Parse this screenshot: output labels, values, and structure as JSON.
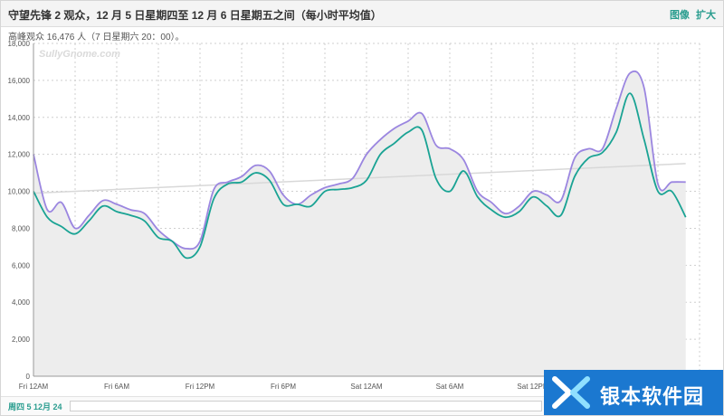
{
  "header": {
    "title": "守望先锋 2 观众，12 月 5 日星期四至 12 月 6 日星期五之间（每小时平均值）",
    "link_image": "图像",
    "link_expand": "扩大"
  },
  "subheader": {
    "peak_text": "高峰观众 16,476 人（7 日星期六 20：00）。"
  },
  "watermark": {
    "sully": "SullyGnome.com",
    "site_text": "银本软件园"
  },
  "footer": {
    "range_label": "周四 5 12月 24"
  },
  "colors": {
    "series_purple": "#9b86e0",
    "series_teal": "#1aa394",
    "trend": "#d8d8d8",
    "area_fill": "#ededed",
    "grid": "#cfcfcf",
    "accent": "#2a9d8f",
    "watermark_blue": "#1b78d0"
  },
  "chart_data": {
    "type": "line",
    "ylim": [
      0,
      18000
    ],
    "y_ticks": [
      "0",
      "2,000",
      "4,000",
      "6,000",
      "8,000",
      "10,000",
      "12,000",
      "14,000",
      "16,000",
      "18,000"
    ],
    "x_ticks": [
      "Fri 12AM",
      "Fri 6AM",
      "Fri 12PM",
      "Fri 6PM",
      "Sat 12AM",
      "Sat 6AM",
      "Sat 12PM"
    ],
    "x_tick_hours": [
      0,
      6,
      12,
      18,
      24,
      30,
      36
    ],
    "x_range_hours": [
      0,
      48
    ],
    "grid": true,
    "series": [
      {
        "values": [
          12000,
          9000,
          9400,
          8000,
          8700,
          9500,
          9300,
          9000,
          8800,
          7900,
          7300,
          6900,
          7300,
          10100,
          10500,
          10800,
          11400,
          11100,
          9800,
          9300,
          9800,
          10200,
          10400,
          10700,
          12000,
          12800,
          13400,
          13800,
          14200,
          12500,
          12300,
          11700,
          10000,
          9400,
          8800,
          9200,
          10000,
          9800,
          9500,
          11800,
          12300,
          12300,
          14500,
          16400,
          15600,
          10400,
          10500,
          10500
        ]
      },
      {
        "values": [
          10000,
          8600,
          8100,
          7700,
          8400,
          9200,
          8900,
          8700,
          8400,
          7500,
          7300,
          6400,
          7000,
          9600,
          10400,
          10500,
          11000,
          10600,
          9300,
          9300,
          9200,
          10000,
          10100,
          10200,
          10600,
          12000,
          12600,
          13200,
          13300,
          10700,
          10000,
          11100,
          9700,
          9000,
          8600,
          8900,
          9700,
          9200,
          8700,
          10800,
          11800,
          12100,
          13200,
          15300,
          12800,
          10000,
          10000,
          8600
        ]
      }
    ],
    "trendline": [
      9900,
      11500
    ]
  }
}
